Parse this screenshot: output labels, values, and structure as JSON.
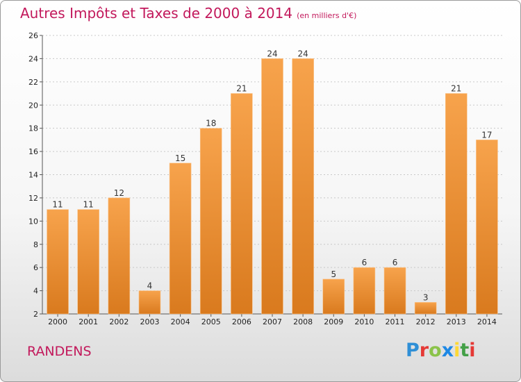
{
  "chart_data": {
    "type": "bar",
    "title": "Autres Impôts et Taxes de 2000 à 2014",
    "subtitle": "(en milliers d'€)",
    "xlabel": "",
    "ylabel": "",
    "categories": [
      "2000",
      "2001",
      "2002",
      "2003",
      "2004",
      "2005",
      "2006",
      "2007",
      "2008",
      "2009",
      "2010",
      "2011",
      "2012",
      "2013",
      "2014"
    ],
    "values": [
      11,
      11,
      12,
      4,
      15,
      18,
      21,
      24,
      24,
      5,
      6,
      6,
      3,
      21,
      17
    ],
    "ylim": [
      2,
      26
    ],
    "yticks": [
      2,
      4,
      6,
      8,
      10,
      12,
      14,
      16,
      18,
      20,
      22,
      24,
      26
    ],
    "grid": true,
    "bar_color": "#f49a3c"
  },
  "footer": {
    "place": "RANDENS",
    "logo": "Proxiti"
  }
}
